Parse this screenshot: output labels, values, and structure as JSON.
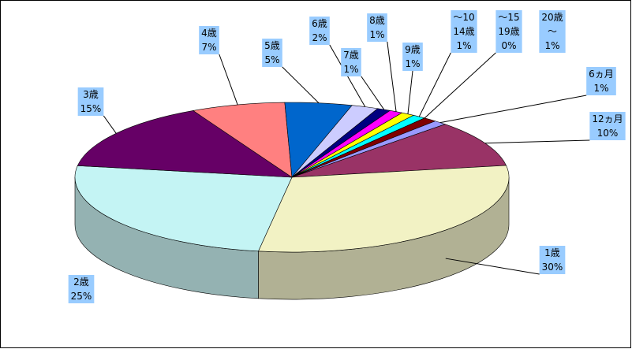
{
  "chart_data": {
    "type": "pie",
    "categories": [
      [
        "6ヵ月"
      ],
      [
        "12ヵ月"
      ],
      [
        "1歳"
      ],
      [
        "2歳"
      ],
      [
        "3歳"
      ],
      [
        "4歳"
      ],
      [
        "5歳"
      ],
      [
        "6歳"
      ],
      [
        "7歳"
      ],
      [
        "8歳"
      ],
      [
        "9歳"
      ],
      [
        "～10",
        "14歳"
      ],
      [
        "～15",
        "19歳"
      ],
      [
        "20歳",
        "～"
      ]
    ],
    "values": [
      1,
      10,
      30,
      25,
      15,
      7,
      5,
      2,
      1,
      1,
      1,
      1,
      0,
      1
    ],
    "value_labels": [
      "1%",
      "10%",
      "30%",
      "25%",
      "15%",
      "7%",
      "5%",
      "2%",
      "1%",
      "1%",
      "1%",
      "1%",
      "0%",
      "1%"
    ],
    "colors": [
      "#9999ff",
      "#993366",
      "#f2f2c4",
      "#c4f4f4",
      "#660066",
      "#ff8080",
      "#0066cc",
      "#ccccff",
      "#000080",
      "#ff00ff",
      "#ffff00",
      "#00ffff",
      "#800080",
      "#800000"
    ]
  }
}
